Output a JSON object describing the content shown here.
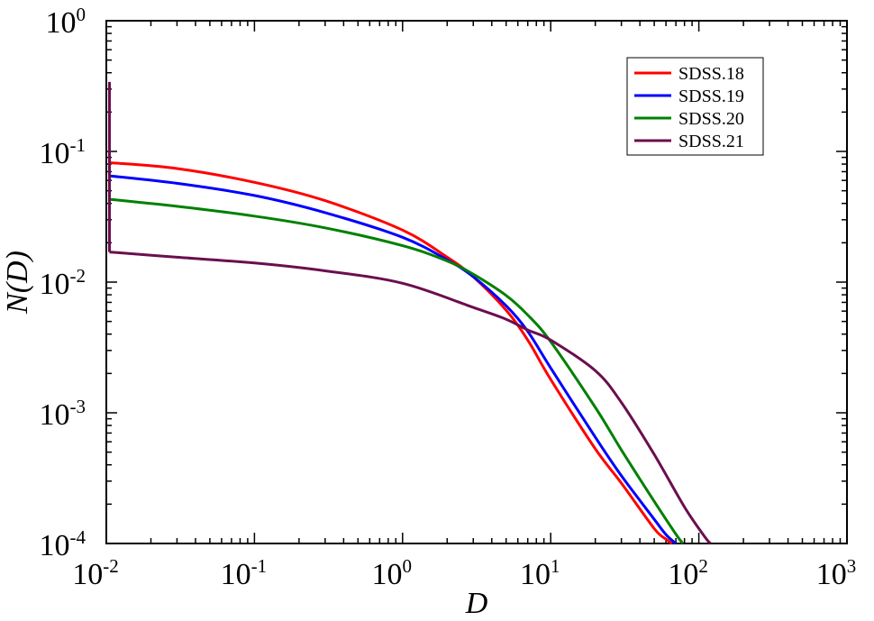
{
  "chart_data": {
    "type": "line",
    "title": "",
    "xlabel": "D",
    "ylabel": "N(D)",
    "xscale": "log",
    "yscale": "log",
    "xlim": [
      0.01,
      1000
    ],
    "ylim": [
      0.0001,
      1
    ],
    "x_ticks": [
      {
        "base": "10",
        "exp": "-2"
      },
      {
        "base": "10",
        "exp": "-1"
      },
      {
        "base": "10",
        "exp": "0"
      },
      {
        "base": "10",
        "exp": "1"
      },
      {
        "base": "10",
        "exp": "2"
      },
      {
        "base": "10",
        "exp": "3"
      }
    ],
    "y_ticks": [
      {
        "base": "10",
        "exp": "0"
      },
      {
        "base": "10",
        "exp": "-1"
      },
      {
        "base": "10",
        "exp": "-2"
      },
      {
        "base": "10",
        "exp": "-3"
      },
      {
        "base": "10",
        "exp": "-4"
      }
    ],
    "grid": false,
    "legend_position": "top-right",
    "series": [
      {
        "name": "SDSS.18",
        "color": "#ff0000",
        "x": [
          0.0105,
          0.03,
          0.1,
          0.3,
          1,
          2,
          3,
          5,
          7,
          10,
          20,
          30,
          50,
          60,
          66
        ],
        "y": [
          0.082,
          0.074,
          0.058,
          0.042,
          0.025,
          0.0155,
          0.011,
          0.0061,
          0.0036,
          0.0018,
          0.00053,
          0.00029,
          0.00013,
          0.000108,
          0.0001
        ]
      },
      {
        "name": "SDSS.19",
        "color": "#0000ff",
        "x": [
          0.0105,
          0.03,
          0.1,
          0.3,
          1,
          2,
          3,
          5,
          7,
          10,
          20,
          30,
          50,
          60,
          70
        ],
        "y": [
          0.065,
          0.057,
          0.046,
          0.034,
          0.022,
          0.0148,
          0.011,
          0.0066,
          0.0042,
          0.0022,
          0.00065,
          0.00033,
          0.000153,
          0.000117,
          0.0001
        ]
      },
      {
        "name": "SDSS.20",
        "color": "#008000",
        "x": [
          0.0105,
          0.03,
          0.1,
          0.3,
          1,
          2,
          3,
          5,
          7,
          10,
          20,
          30,
          50,
          70,
          78
        ],
        "y": [
          0.043,
          0.038,
          0.032,
          0.026,
          0.019,
          0.0145,
          0.0115,
          0.0079,
          0.0056,
          0.0035,
          0.0011,
          0.00052,
          0.00021,
          0.000118,
          0.0001
        ]
      },
      {
        "name": "SDSS.21",
        "color": "#6b0e4f",
        "x": [
          0.0105,
          0.03,
          0.1,
          0.3,
          1,
          3,
          5,
          7,
          10,
          20,
          30,
          50,
          80,
          110,
          120
        ],
        "y": [
          0.017,
          0.0155,
          0.014,
          0.0122,
          0.0098,
          0.0064,
          0.0052,
          0.0043,
          0.0036,
          0.0021,
          0.0012,
          0.00048,
          0.00019,
          0.000112,
          0.0001
        ]
      }
    ],
    "spike": {
      "series": "SDSS.21",
      "x": 0.0105,
      "y_top": 0.34,
      "y_bottom": 0.017
    }
  }
}
